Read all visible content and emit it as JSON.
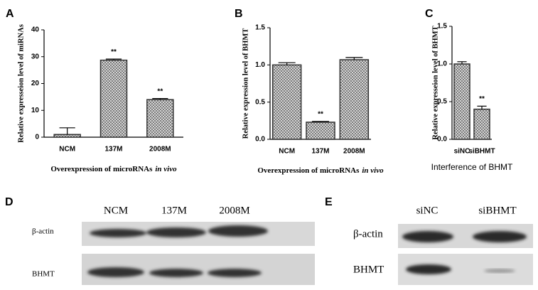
{
  "chart_data": [
    {
      "type": "bar",
      "panel": "A",
      "ylabel": "Relative expresseion level of miRNAs",
      "xlabel": [
        "Overexpression of microRNAs",
        "in vivo"
      ],
      "categories": [
        "NCM",
        "137M",
        "2008M"
      ],
      "values": [
        1,
        28.7,
        14
      ],
      "errors": [
        2.5,
        0.4,
        0.4
      ],
      "value_annotations": [
        null,
        "**",
        "**"
      ],
      "ylim": [
        0,
        40
      ],
      "yticks": [
        0,
        10,
        20,
        30,
        40
      ],
      "color": "#333333"
    },
    {
      "type": "bar",
      "panel": "B",
      "ylabel": "Relative expression level of BHMT",
      "xlabel": [
        "Overexpression of microRNAs",
        "in vivo"
      ],
      "categories": [
        "NCM",
        "137M",
        "2008M"
      ],
      "values": [
        1.0,
        0.23,
        1.07
      ],
      "errors": [
        0.03,
        0.01,
        0.03
      ],
      "value_annotations": [
        null,
        "**",
        null
      ],
      "ylim": [
        0,
        1.5
      ],
      "yticks": [
        {
          "value": 0,
          "label": "0.0"
        },
        {
          "value": 0.5,
          "label": "0.5"
        },
        {
          "value": 1,
          "label": "1.0"
        },
        {
          "value": 1.5,
          "label": "1.5"
        }
      ],
      "color": "#333333"
    },
    {
      "type": "bar",
      "panel": "C",
      "ylabel": "Relative expresseion level of BHMT",
      "xlabel": [
        "Interference of BHMT"
      ],
      "categories": [
        "siNC",
        "siBHMT"
      ],
      "values": [
        1.0,
        0.4
      ],
      "errors": [
        0.03,
        0.04
      ],
      "value_annotations": [
        null,
        "**"
      ],
      "ylim": [
        0,
        1.5
      ],
      "yticks": [
        {
          "value": 0,
          "label": "0.0"
        },
        {
          "value": 0.5,
          "label": "0.5"
        },
        {
          "value": 1,
          "label": "1.0"
        },
        {
          "value": 1.5,
          "label": "1.5"
        }
      ],
      "color": "#333333"
    }
  ],
  "blots": [
    {
      "panel": "D",
      "lanes": [
        "NCM",
        "137M",
        "2008M"
      ],
      "rows": [
        "β-actin",
        "BHMT"
      ]
    },
    {
      "panel": "E",
      "lanes": [
        "siNC",
        "siBHMT"
      ],
      "rows": [
        "β-actin",
        "BHMT"
      ]
    }
  ]
}
